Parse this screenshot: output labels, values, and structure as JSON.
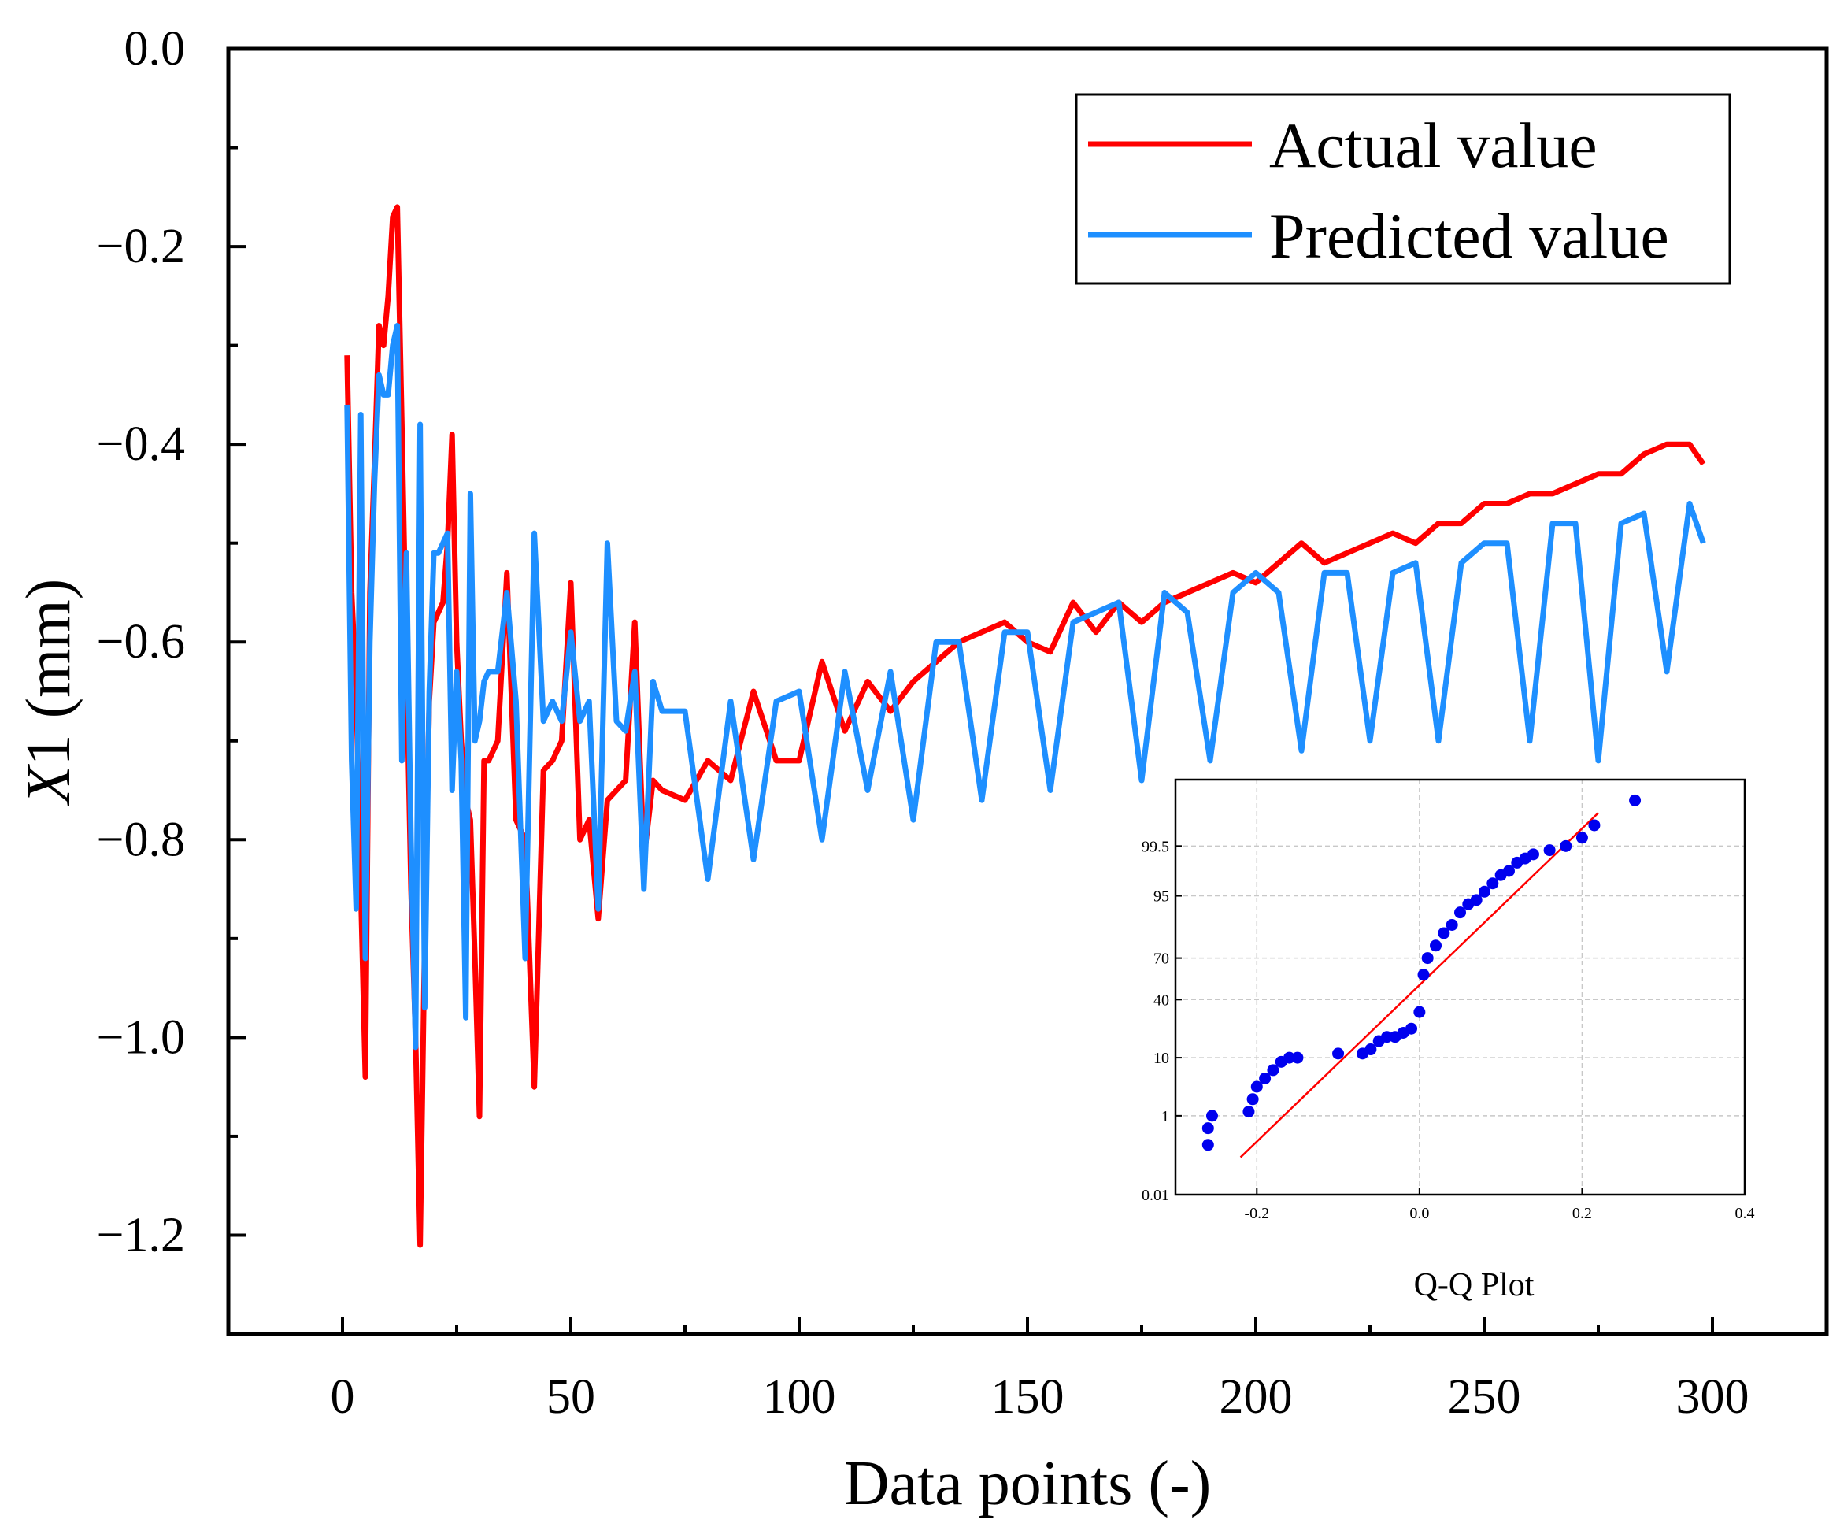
{
  "chart_data": [
    {
      "type": "line",
      "title": "",
      "xlabel": "Data points (-)",
      "ylabel_italic": "X",
      "ylabel_rest": "1 (mm)",
      "xlim": [
        -25,
        325
      ],
      "ylim": [
        -1.3,
        0.0
      ],
      "xticks": [
        0,
        50,
        100,
        150,
        200,
        250,
        300
      ],
      "xtick_labels": [
        "0",
        "50",
        "100",
        "150",
        "200",
        "250",
        "300"
      ],
      "xminor": [
        25,
        75,
        125,
        175,
        225,
        275
      ],
      "yticks": [
        0.0,
        -0.2,
        -0.4,
        -0.6,
        -0.8,
        -1.0,
        -1.2
      ],
      "ytick_labels": [
        "0.0",
        "−0.2",
        "−0.4",
        "−0.6",
        "−0.8",
        "−1.0",
        "−1.2"
      ],
      "yminor": [
        -0.1,
        -0.3,
        -0.5,
        -0.7,
        -0.9,
        -1.1
      ],
      "legend_position": "top-right",
      "series": [
        {
          "name": "Actual value",
          "color": "#ff0000",
          "x": [
            1,
            2,
            3,
            4,
            5,
            6,
            7,
            8,
            9,
            10,
            11,
            12,
            13,
            14,
            15,
            16,
            17,
            18,
            19,
            20,
            21,
            22,
            23,
            24,
            25,
            26,
            27,
            28,
            29,
            30,
            31,
            32,
            34,
            36,
            38,
            40,
            42,
            44,
            46,
            48,
            50,
            52,
            54,
            56,
            58,
            60,
            62,
            64,
            66,
            68,
            70,
            75,
            80,
            85,
            90,
            95,
            100,
            105,
            110,
            115,
            120,
            125,
            130,
            135,
            140,
            145,
            150,
            155,
            160,
            165,
            170,
            175,
            180,
            185,
            190,
            195,
            200,
            205,
            210,
            215,
            220,
            225,
            230,
            235,
            240,
            245,
            250,
            255,
            260,
            265,
            270,
            275,
            280,
            285,
            290,
            295,
            298
          ],
          "values": [
            -0.31,
            -0.55,
            -0.65,
            -0.85,
            -1.04,
            -0.55,
            -0.42,
            -0.28,
            -0.3,
            -0.25,
            -0.17,
            -0.16,
            -0.38,
            -0.62,
            -0.85,
            -1.0,
            -1.21,
            -0.9,
            -0.66,
            -0.58,
            -0.57,
            -0.56,
            -0.5,
            -0.39,
            -0.6,
            -0.7,
            -0.76,
            -0.78,
            -0.92,
            -1.08,
            -0.72,
            -0.72,
            -0.7,
            -0.53,
            -0.78,
            -0.8,
            -1.05,
            -0.73,
            -0.72,
            -0.7,
            -0.54,
            -0.8,
            -0.78,
            -0.88,
            -0.76,
            -0.75,
            -0.74,
            -0.58,
            -0.82,
            -0.74,
            -0.75,
            -0.76,
            -0.72,
            -0.74,
            -0.65,
            -0.72,
            -0.72,
            -0.62,
            -0.69,
            -0.64,
            -0.67,
            -0.64,
            -0.62,
            -0.6,
            -0.59,
            -0.58,
            -0.6,
            -0.61,
            -0.56,
            -0.59,
            -0.56,
            -0.58,
            -0.56,
            -0.55,
            -0.54,
            -0.53,
            -0.54,
            -0.52,
            -0.5,
            -0.52,
            -0.51,
            -0.5,
            -0.49,
            -0.5,
            -0.48,
            -0.48,
            -0.46,
            -0.46,
            -0.45,
            -0.45,
            -0.44,
            -0.43,
            -0.43,
            -0.41,
            -0.4,
            -0.4,
            -0.42
          ]
        },
        {
          "name": "Predicted value",
          "color": "#1e8fff",
          "x": [
            1,
            2,
            3,
            4,
            5,
            6,
            7,
            8,
            9,
            10,
            11,
            12,
            13,
            14,
            15,
            16,
            17,
            18,
            19,
            20,
            21,
            22,
            23,
            24,
            25,
            26,
            27,
            28,
            29,
            30,
            31,
            32,
            34,
            36,
            38,
            40,
            42,
            44,
            46,
            48,
            50,
            52,
            54,
            56,
            58,
            60,
            62,
            64,
            66,
            68,
            70,
            75,
            80,
            85,
            90,
            95,
            100,
            105,
            110,
            115,
            120,
            125,
            130,
            135,
            140,
            145,
            150,
            155,
            160,
            165,
            170,
            175,
            180,
            185,
            190,
            195,
            200,
            205,
            210,
            215,
            220,
            225,
            230,
            235,
            240,
            245,
            250,
            255,
            260,
            265,
            270,
            275,
            280,
            285,
            290,
            295,
            298
          ],
          "values": [
            -0.36,
            -0.72,
            -0.87,
            -0.37,
            -0.92,
            -0.6,
            -0.44,
            -0.33,
            -0.35,
            -0.35,
            -0.3,
            -0.28,
            -0.72,
            -0.51,
            -0.8,
            -1.01,
            -0.38,
            -0.97,
            -0.65,
            -0.51,
            -0.51,
            -0.5,
            -0.49,
            -0.75,
            -0.63,
            -0.72,
            -0.98,
            -0.45,
            -0.7,
            -0.68,
            -0.64,
            -0.63,
            -0.63,
            -0.55,
            -0.66,
            -0.92,
            -0.49,
            -0.68,
            -0.66,
            -0.68,
            -0.59,
            -0.68,
            -0.66,
            -0.87,
            -0.5,
            -0.68,
            -0.69,
            -0.63,
            -0.85,
            -0.64,
            -0.67,
            -0.67,
            -0.84,
            -0.66,
            -0.82,
            -0.66,
            -0.65,
            -0.8,
            -0.63,
            -0.75,
            -0.63,
            -0.78,
            -0.6,
            -0.6,
            -0.76,
            -0.59,
            -0.59,
            -0.75,
            -0.58,
            -0.57,
            -0.56,
            -0.74,
            -0.55,
            -0.57,
            -0.72,
            -0.55,
            -0.53,
            -0.55,
            -0.71,
            -0.53,
            -0.53,
            -0.7,
            -0.53,
            -0.52,
            -0.7,
            -0.52,
            -0.5,
            -0.5,
            -0.7,
            -0.48,
            -0.48,
            -0.72,
            -0.48,
            -0.47,
            -0.63,
            -0.46,
            -0.5
          ]
        }
      ]
    },
    {
      "type": "scatter",
      "title": "Q-Q Plot",
      "xlim": [
        -0.3,
        0.4
      ],
      "xticks": [
        -0.2,
        0.0,
        0.2,
        0.4
      ],
      "xtick_labels": [
        "-0.2",
        "0.0",
        "0.2",
        "0.4"
      ],
      "yticks": [
        0.01,
        1,
        10,
        40,
        70,
        95,
        99.5
      ],
      "ytick_labels": [
        "0.01",
        "1",
        "10",
        "40",
        "70",
        "95",
        "99.5"
      ],
      "y_positions": [
        0.0,
        0.19,
        0.33,
        0.47,
        0.57,
        0.72,
        0.84
      ],
      "grid": true,
      "point_color": "#0000ee",
      "line_color": "#ff0000",
      "ref_line": {
        "x": [
          -0.22,
          0.22
        ],
        "y": [
          0.09,
          0.92
        ]
      },
      "points_x": [
        -0.26,
        -0.26,
        -0.255,
        -0.21,
        -0.205,
        -0.2,
        -0.19,
        -0.18,
        -0.17,
        -0.16,
        -0.15,
        -0.1,
        -0.07,
        -0.06,
        -0.05,
        -0.04,
        -0.03,
        -0.02,
        -0.01,
        0.0,
        0.005,
        0.01,
        0.02,
        0.03,
        0.04,
        0.05,
        0.06,
        0.07,
        0.08,
        0.09,
        0.1,
        0.11,
        0.12,
        0.13,
        0.14,
        0.16,
        0.18,
        0.2,
        0.215,
        0.265
      ],
      "points_y": [
        0.12,
        0.16,
        0.19,
        0.2,
        0.23,
        0.26,
        0.28,
        0.3,
        0.32,
        0.33,
        0.33,
        0.34,
        0.34,
        0.35,
        0.37,
        0.38,
        0.38,
        0.39,
        0.4,
        0.44,
        0.53,
        0.57,
        0.6,
        0.63,
        0.65,
        0.68,
        0.7,
        0.71,
        0.73,
        0.75,
        0.77,
        0.78,
        0.8,
        0.81,
        0.82,
        0.83,
        0.84,
        0.86,
        0.89,
        0.95
      ]
    }
  ]
}
